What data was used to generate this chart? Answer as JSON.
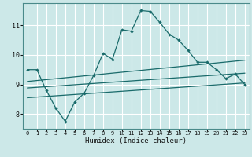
{
  "xlabel": "Humidex (Indice chaleur)",
  "bg_color": "#cce8e8",
  "grid_color": "#ffffff",
  "line_color": "#1a6b6b",
  "xlim": [
    -0.5,
    23.5
  ],
  "ylim": [
    7.5,
    11.75
  ],
  "x_ticks": [
    0,
    1,
    2,
    3,
    4,
    5,
    6,
    7,
    8,
    9,
    10,
    11,
    12,
    13,
    14,
    15,
    16,
    17,
    18,
    19,
    20,
    21,
    22,
    23
  ],
  "y_ticks": [
    8,
    9,
    10,
    11
  ],
  "main_line_x": [
    0,
    1,
    2,
    3,
    4,
    5,
    6,
    7,
    8,
    9,
    10,
    11,
    12,
    13,
    14,
    15,
    16,
    17,
    18,
    19,
    20,
    21,
    22,
    23
  ],
  "main_line_y": [
    9.5,
    9.5,
    8.8,
    8.2,
    7.75,
    8.4,
    8.7,
    9.3,
    10.05,
    9.85,
    10.85,
    10.8,
    11.5,
    11.47,
    11.1,
    10.7,
    10.5,
    10.15,
    9.75,
    9.75,
    9.5,
    9.2,
    9.35,
    9.0
  ],
  "line2_x": [
    0,
    23
  ],
  "line2_y": [
    8.55,
    9.05
  ],
  "line3_x": [
    0,
    23
  ],
  "line3_y": [
    8.88,
    9.38
  ],
  "line4_x": [
    0,
    23
  ],
  "line4_y": [
    9.1,
    9.82
  ]
}
